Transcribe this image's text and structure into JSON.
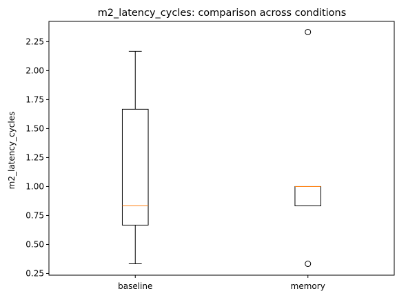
{
  "chart_data": {
    "type": "box",
    "title": "m2_latency_cycles: comparison across conditions",
    "xlabel": "",
    "ylabel": "m2_latency_cycles",
    "ylim": [
      0.235,
      2.425
    ],
    "yticks": [
      0.25,
      0.5,
      0.75,
      1.0,
      1.25,
      1.5,
      1.75,
      2.0,
      2.25
    ],
    "ytick_labels": [
      "0.25",
      "0.50",
      "0.75",
      "1.00",
      "1.25",
      "1.50",
      "1.75",
      "2.00",
      "2.25"
    ],
    "categories": [
      "baseline",
      "memory"
    ],
    "boxes": [
      {
        "label": "baseline",
        "whisker_low": 0.333,
        "q1": 0.667,
        "median": 0.833,
        "q3": 1.667,
        "whisker_high": 2.167,
        "outliers": []
      },
      {
        "label": "memory",
        "whisker_low": 0.833,
        "q1": 0.833,
        "median": 1.0,
        "q3": 1.0,
        "whisker_high": 1.0,
        "outliers": [
          2.333,
          0.333
        ]
      }
    ],
    "colors": {
      "box": "#000000",
      "median": "#ff7f0e",
      "outlier": "#000000"
    }
  }
}
